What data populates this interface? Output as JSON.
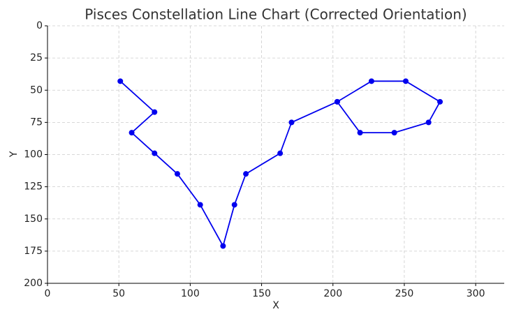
{
  "chart_data": {
    "type": "line",
    "title": "Pisces Constellation Line Chart (Corrected Orientation)",
    "x_label": "X",
    "y_label": "Y",
    "x": [
      51,
      75,
      59,
      75,
      91,
      107,
      123,
      131,
      139,
      163,
      171,
      203,
      227,
      251,
      275,
      267,
      243,
      219,
      203
    ],
    "series": [
      {
        "name": "Pisces",
        "color": "#0000ee",
        "values": [
          43,
          67,
          83,
          99,
          115,
          139,
          171,
          139,
          115,
          99,
          75,
          59,
          43,
          43,
          59,
          75,
          83,
          83,
          59
        ]
      }
    ],
    "xlim": [
      0,
      320
    ],
    "xticks": [
      0,
      50,
      100,
      150,
      200,
      250,
      300
    ],
    "ylim": [
      200,
      0
    ],
    "yticks": [
      0,
      25,
      50,
      75,
      100,
      125,
      150,
      175,
      200
    ],
    "grid": true
  }
}
